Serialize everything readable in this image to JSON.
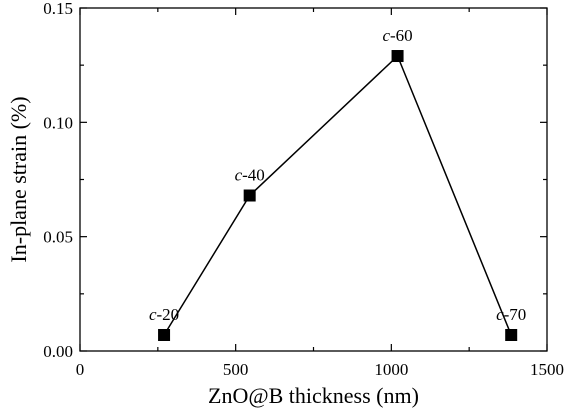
{
  "chart_data": {
    "type": "line",
    "title": "",
    "xlabel": "ZnO@B thickness (nm)",
    "ylabel": "In-plane strain (%)",
    "xlim": [
      0,
      1500
    ],
    "ylim": [
      0,
      0.15
    ],
    "x_ticks": [
      0,
      500,
      1000,
      1500
    ],
    "y_ticks": [
      0.0,
      0.05,
      0.1,
      0.15
    ],
    "x_tick_labels": [
      "0",
      "500",
      "1000",
      "1500"
    ],
    "y_tick_labels": [
      "0.00",
      "0.05",
      "0.10",
      "0.15"
    ],
    "grid": false,
    "marker": "square",
    "color": "#000000",
    "series": [
      {
        "x": [
          270,
          545,
          1020,
          1385
        ],
        "y": [
          0.007,
          0.068,
          0.129,
          0.007
        ],
        "point_labels": [
          {
            "prefix": "c",
            "suffix": "-20"
          },
          {
            "prefix": "c",
            "suffix": "-40"
          },
          {
            "prefix": "c",
            "suffix": "-60"
          },
          {
            "prefix": "c",
            "suffix": "-70"
          }
        ]
      }
    ]
  }
}
